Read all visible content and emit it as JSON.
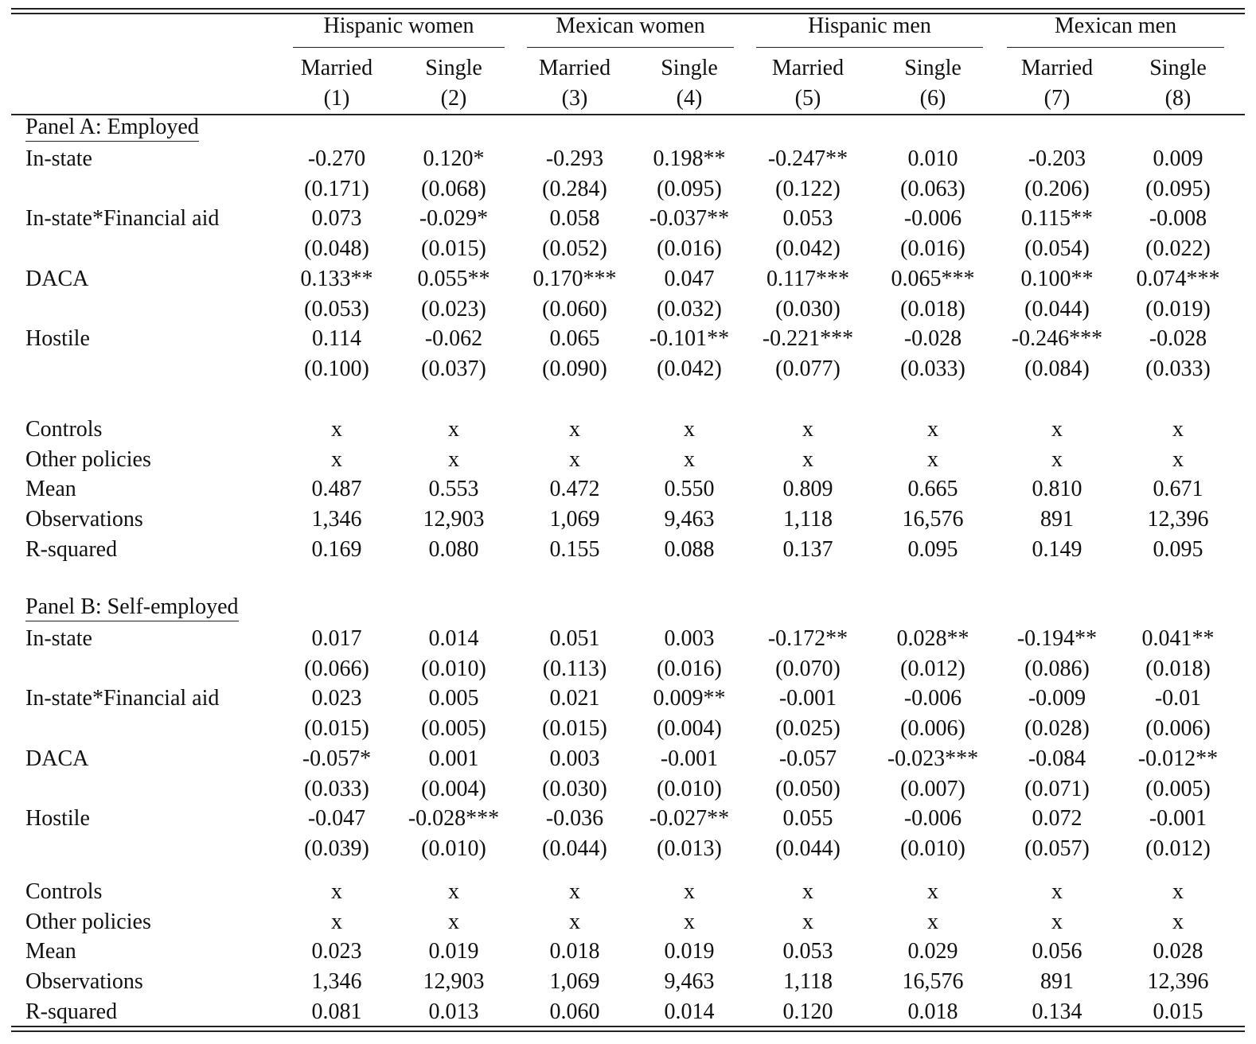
{
  "header": {
    "groups": [
      "Hispanic women",
      "Mexican women",
      "Hispanic men",
      "Mexican men"
    ],
    "subheaders": [
      "Married",
      "Single",
      "Married",
      "Single",
      "Married",
      "Single",
      "Married",
      "Single"
    ],
    "numbers": [
      "(1)",
      "(2)",
      "(3)",
      "(4)",
      "(5)",
      "(6)",
      "(7)",
      "(8)"
    ]
  },
  "panels": [
    {
      "title": "Panel A: Employed",
      "coef_rows": [
        {
          "label": "In-state",
          "values": [
            "-0.270",
            "0.120*",
            "-0.293",
            "0.198**",
            "-0.247**",
            "0.010",
            "-0.203",
            "0.009"
          ],
          "se": [
            "(0.171)",
            "(0.068)",
            "(0.284)",
            "(0.095)",
            "(0.122)",
            "(0.063)",
            "(0.206)",
            "(0.095)"
          ]
        },
        {
          "label": "In-state*Financial aid",
          "values": [
            "0.073",
            "-0.029*",
            "0.058",
            "-0.037**",
            "0.053",
            "-0.006",
            "0.115**",
            "-0.008"
          ],
          "se": [
            "(0.048)",
            "(0.015)",
            "(0.052)",
            "(0.016)",
            "(0.042)",
            "(0.016)",
            "(0.054)",
            "(0.022)"
          ]
        },
        {
          "label": "DACA",
          "values": [
            "0.133**",
            "0.055**",
            "0.170***",
            "0.047",
            "0.117***",
            "0.065***",
            "0.100**",
            "0.074***"
          ],
          "se": [
            "(0.053)",
            "(0.023)",
            "(0.060)",
            "(0.032)",
            "(0.030)",
            "(0.018)",
            "(0.044)",
            "(0.019)"
          ]
        },
        {
          "label": "Hostile",
          "values": [
            "0.114",
            "-0.062",
            "0.065",
            "-0.101**",
            "-0.221***",
            "-0.028",
            "-0.246***",
            "-0.028"
          ],
          "se": [
            "(0.100)",
            "(0.037)",
            "(0.090)",
            "(0.042)",
            "(0.077)",
            "(0.033)",
            "(0.084)",
            "(0.033)"
          ]
        }
      ],
      "stat_rows": [
        {
          "label": "Controls",
          "values": [
            "x",
            "x",
            "x",
            "x",
            "x",
            "x",
            "x",
            "x"
          ]
        },
        {
          "label": "Other policies",
          "values": [
            "x",
            "x",
            "x",
            "x",
            "x",
            "x",
            "x",
            "x"
          ]
        },
        {
          "label": "Mean",
          "values": [
            "0.487",
            "0.553",
            "0.472",
            "0.550",
            "0.809",
            "0.665",
            "0.810",
            "0.671"
          ]
        },
        {
          "label": "Observations",
          "values": [
            "1,346",
            "12,903",
            "1,069",
            "9,463",
            "1,118",
            "16,576",
            "891",
            "12,396"
          ]
        },
        {
          "label": "R-squared",
          "values": [
            "0.169",
            "0.080",
            "0.155",
            "0.088",
            "0.137",
            "0.095",
            "0.149",
            "0.095"
          ]
        }
      ]
    },
    {
      "title": "Panel B: Self-employed",
      "coef_rows": [
        {
          "label": "In-state",
          "values": [
            "0.017",
            "0.014",
            "0.051",
            "0.003",
            "-0.172**",
            "0.028**",
            "-0.194**",
            "0.041**"
          ],
          "se": [
            "(0.066)",
            "(0.010)",
            "(0.113)",
            "(0.016)",
            "(0.070)",
            "(0.012)",
            "(0.086)",
            "(0.018)"
          ]
        },
        {
          "label": "In-state*Financial aid",
          "values": [
            "0.023",
            "0.005",
            "0.021",
            "0.009**",
            "-0.001",
            "-0.006",
            "-0.009",
            "-0.01"
          ],
          "se": [
            "(0.015)",
            "(0.005)",
            "(0.015)",
            "(0.004)",
            "(0.025)",
            "(0.006)",
            "(0.028)",
            "(0.006)"
          ]
        },
        {
          "label": "DACA",
          "values": [
            "-0.057*",
            "0.001",
            "0.003",
            "-0.001",
            "-0.057",
            "-0.023***",
            "-0.084",
            "-0.012**"
          ],
          "se": [
            "(0.033)",
            "(0.004)",
            "(0.030)",
            "(0.010)",
            "(0.050)",
            "(0.007)",
            "(0.071)",
            "(0.005)"
          ]
        },
        {
          "label": "Hostile",
          "values": [
            "-0.047",
            "-0.028***",
            "-0.036",
            "-0.027**",
            "0.055",
            "-0.006",
            "0.072",
            "-0.001"
          ],
          "se": [
            "(0.039)",
            "(0.010)",
            "(0.044)",
            "(0.013)",
            "(0.044)",
            "(0.010)",
            "(0.057)",
            "(0.012)"
          ]
        }
      ],
      "stat_rows": [
        {
          "label": "Controls",
          "values": [
            "x",
            "x",
            "x",
            "x",
            "x",
            "x",
            "x",
            "x"
          ]
        },
        {
          "label": "Other policies",
          "values": [
            "x",
            "x",
            "x",
            "x",
            "x",
            "x",
            "x",
            "x"
          ]
        },
        {
          "label": "Mean",
          "values": [
            "0.023",
            "0.019",
            "0.018",
            "0.019",
            "0.053",
            "0.029",
            "0.056",
            "0.028"
          ]
        },
        {
          "label": "Observations",
          "values": [
            "1,346",
            "12,903",
            "1,069",
            "9,463",
            "1,118",
            "16,576",
            "891",
            "12,396"
          ]
        },
        {
          "label": "R-squared",
          "values": [
            "0.081",
            "0.013",
            "0.060",
            "0.014",
            "0.120",
            "0.018",
            "0.134",
            "0.015"
          ]
        }
      ]
    }
  ]
}
